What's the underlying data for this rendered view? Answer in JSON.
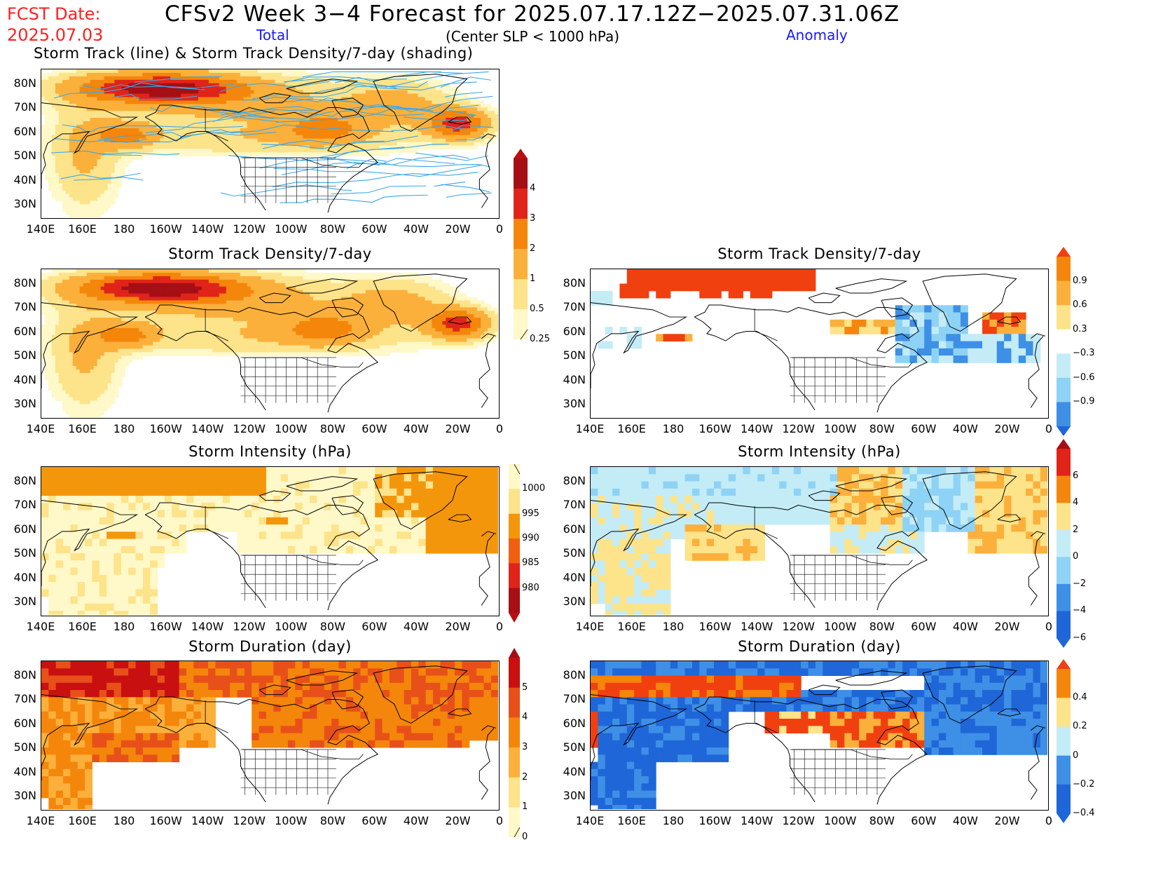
{
  "header": {
    "fcst_date_label": "FCST Date:",
    "fcst_date": "2025.07.03",
    "title": "CFSv2 Week 3−4 Forecast for 2025.07.17.12Z−2025.07.31.06Z",
    "total_label": "Total",
    "subtitle": "(Center SLP < 1000 hPa)",
    "anomaly_label": "Anomaly"
  },
  "axes": {
    "lat_ticks": [
      "80N",
      "70N",
      "60N",
      "50N",
      "40N",
      "30N"
    ],
    "lon_ticks": [
      "140E",
      "160E",
      "180",
      "160W",
      "140W",
      "120W",
      "100W",
      "80W",
      "60W",
      "40W",
      "20W",
      "0"
    ]
  },
  "panels": [
    {
      "id": "track-total",
      "title": "Storm Track (line) & Storm Track Density/7-day (shading)",
      "kind": "density",
      "tracks": true
    },
    {
      "id": "density-total",
      "title": "Storm Track Density/7-day",
      "kind": "density",
      "tracks": false
    },
    {
      "id": "density-anom",
      "title": "Storm Track Density/7-day",
      "kind": "density-anom"
    },
    {
      "id": "intensity-total",
      "title": "Storm Intensity (hPa)",
      "kind": "intensity"
    },
    {
      "id": "intensity-anom",
      "title": "Storm Intensity (hPa)",
      "kind": "intensity-anom"
    },
    {
      "id": "duration-total",
      "title": "Storm Duration (day)",
      "kind": "duration"
    },
    {
      "id": "duration-anom",
      "title": "Storm Duration (day)",
      "kind": "duration-anom"
    }
  ],
  "colorbars": {
    "density_total": {
      "labels": [
        "4",
        "3",
        "2",
        "1",
        "0.5",
        "0.25"
      ],
      "colors": [
        "#a50f15",
        "#e0241a",
        "#f4860b",
        "#fbb03b",
        "#fde38a",
        "#fff8c8"
      ],
      "top": "#b81010"
    },
    "density_anom": {
      "labels": [
        "0.9",
        "0.6",
        "0.3",
        "−0.3",
        "−0.6",
        "−0.9"
      ],
      "colors": [
        "#f4860b",
        "#fbb03b",
        "#fde38a",
        "#ffffff",
        "#c4ecf7",
        "#8ed3f5",
        "#3e8fe6"
      ],
      "top": "#f04010",
      "bottom": "#1f66d8"
    },
    "intensity_total": {
      "labels": [
        "1000",
        "995",
        "990",
        "985",
        "980"
      ],
      "colors": [
        "#fff8c8",
        "#fde38a",
        "#f4960b",
        "#f06010",
        "#e0241a",
        "#a50f15"
      ],
      "bottom": "#b81010"
    },
    "intensity_anom": {
      "labels": [
        "6",
        "4",
        "2",
        "0",
        "−2",
        "−4",
        "−6"
      ],
      "colors": [
        "#e0241a",
        "#f4860b",
        "#fde38a",
        "#c4ecf7",
        "#8ed3f5",
        "#3e8fe6",
        "#1f66d8"
      ],
      "top": "#a50f15",
      "bottom": "#1f66d8"
    },
    "duration_total": {
      "labels": [
        "5",
        "4",
        "3",
        "2",
        "1",
        "0"
      ],
      "colors": [
        "#c81010",
        "#e8501a",
        "#f4860b",
        "#fbb03b",
        "#fde38a",
        "#fff8c8"
      ],
      "top": "#a50f15"
    },
    "duration_anom": {
      "labels": [
        "0.4",
        "0.2",
        "0",
        "−0.2",
        "−0.4"
      ],
      "colors": [
        "#f4860b",
        "#fde38a",
        "#c4ecf7",
        "#3e8fe6",
        "#1f66d8"
      ],
      "top": "#f04010",
      "bottom": "#1f66d8"
    }
  },
  "colors": {
    "track_line": "#3aa8e8",
    "title_red": "#ff2020",
    "label_blue": "#1a1aff"
  }
}
